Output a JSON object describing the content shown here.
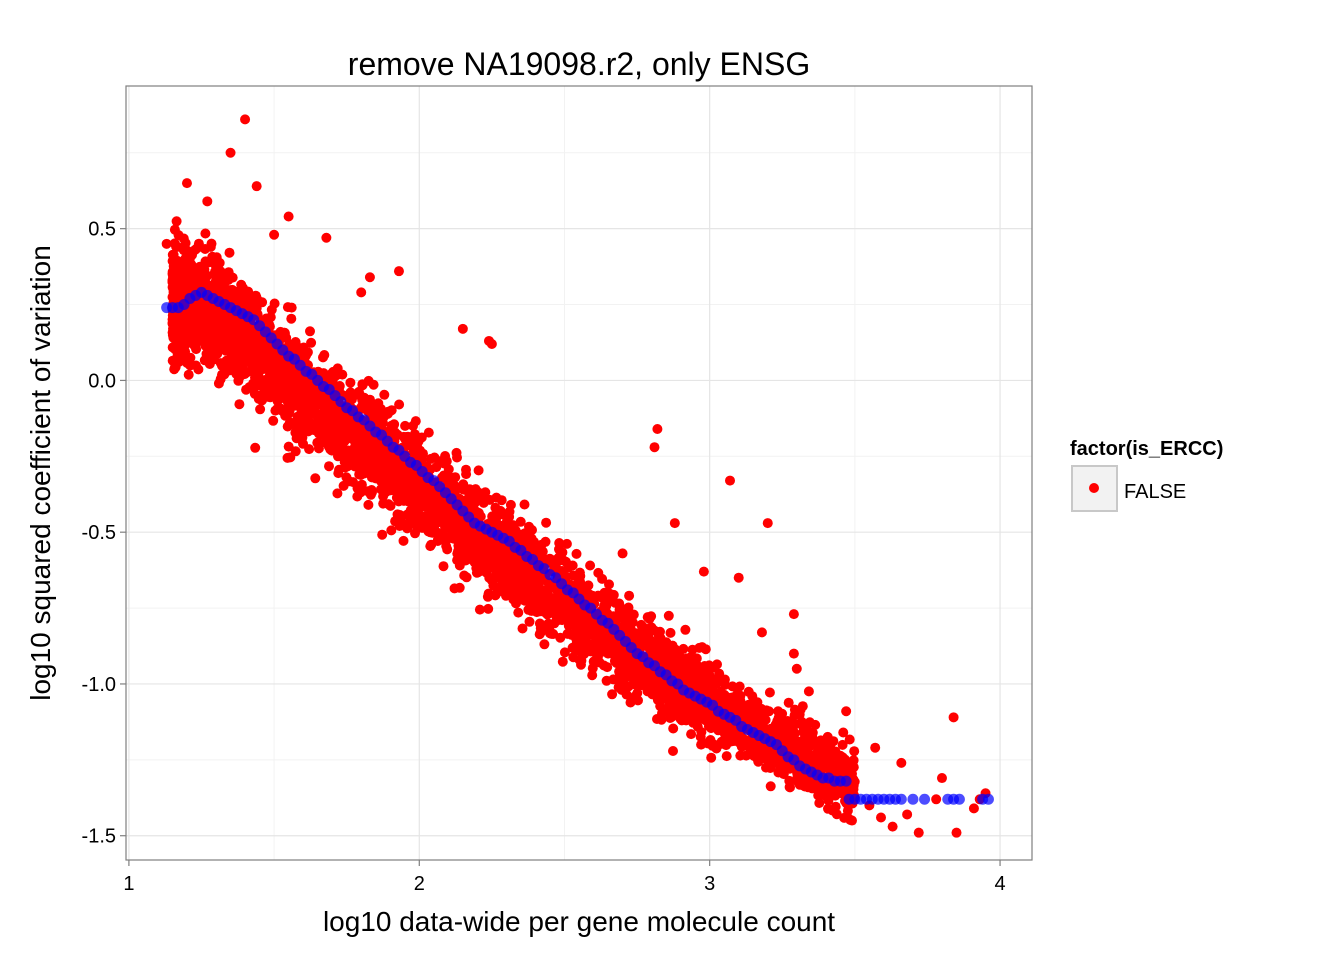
{
  "chart_data": {
    "type": "scatter",
    "title": "remove NA19098.r2, only ENSG",
    "xlabel": "log10 data-wide per gene molecule count",
    "ylabel": "log10 squared coefficient of variation",
    "xlim": [
      0.99,
      4.11
    ],
    "ylim": [
      -1.58,
      0.97
    ],
    "x_ticks": [
      {
        "value": 1,
        "label": "1"
      },
      {
        "value": 2,
        "label": "2"
      },
      {
        "value": 3,
        "label": "3"
      },
      {
        "value": 4,
        "label": "4"
      }
    ],
    "y_ticks": [
      {
        "value": 0.5,
        "label": "0.5"
      },
      {
        "value": 0.0,
        "label": "0.0"
      },
      {
        "value": -0.5,
        "label": "-0.5"
      },
      {
        "value": -1.0,
        "label": "-1.0"
      },
      {
        "value": -1.5,
        "label": "-1.5"
      }
    ],
    "grid": true,
    "legend": {
      "title": "factor(is_ERCC)",
      "position": "right",
      "entries": [
        {
          "label": "FALSE",
          "color": "#ff0000"
        }
      ]
    },
    "series": [
      {
        "name": "FALSE",
        "color": "#ff0000",
        "trend": [
          [
            1.13,
            0.24
          ],
          [
            1.2,
            0.26
          ],
          [
            1.3,
            0.22
          ],
          [
            1.4,
            0.14
          ],
          [
            1.5,
            0.06
          ],
          [
            1.6,
            -0.02
          ],
          [
            1.7,
            -0.1
          ],
          [
            1.8,
            -0.19
          ],
          [
            1.9,
            -0.27
          ],
          [
            2.0,
            -0.35
          ],
          [
            2.1,
            -0.43
          ],
          [
            2.2,
            -0.5
          ],
          [
            2.3,
            -0.58
          ],
          [
            2.4,
            -0.65
          ],
          [
            2.5,
            -0.72
          ],
          [
            2.6,
            -0.8
          ],
          [
            2.7,
            -0.87
          ],
          [
            2.8,
            -0.93
          ],
          [
            2.9,
            -1.0
          ],
          [
            3.0,
            -1.06
          ],
          [
            3.1,
            -1.12
          ],
          [
            3.2,
            -1.17
          ],
          [
            3.3,
            -1.23
          ],
          [
            3.4,
            -1.28
          ],
          [
            3.5,
            -1.32
          ],
          [
            3.6,
            -1.36
          ],
          [
            3.7,
            -1.39
          ],
          [
            3.8,
            -1.4
          ],
          [
            3.97,
            -1.4
          ]
        ],
        "outliers": [
          [
            1.13,
            0.45
          ],
          [
            1.2,
            0.65
          ],
          [
            1.35,
            0.75
          ],
          [
            1.4,
            0.86
          ],
          [
            1.44,
            0.64
          ],
          [
            1.27,
            0.59
          ],
          [
            1.5,
            0.48
          ],
          [
            1.55,
            0.54
          ],
          [
            1.68,
            0.47
          ],
          [
            1.83,
            0.34
          ],
          [
            1.93,
            0.36
          ],
          [
            1.8,
            0.29
          ],
          [
            2.15,
            0.17
          ],
          [
            2.25,
            0.12
          ],
          [
            2.24,
            0.13
          ],
          [
            2.81,
            -0.22
          ],
          [
            2.82,
            -0.16
          ],
          [
            3.07,
            -0.33
          ],
          [
            3.2,
            -0.47
          ],
          [
            2.88,
            -0.47
          ],
          [
            2.7,
            -0.57
          ],
          [
            3.1,
            -0.65
          ],
          [
            2.98,
            -0.63
          ],
          [
            3.29,
            -0.77
          ],
          [
            3.29,
            -0.9
          ],
          [
            3.3,
            -0.95
          ],
          [
            3.18,
            -0.83
          ],
          [
            3.46,
            -1.16
          ],
          [
            3.47,
            -1.09
          ],
          [
            3.57,
            -1.21
          ],
          [
            3.66,
            -1.26
          ],
          [
            3.84,
            -1.11
          ],
          [
            3.8,
            -1.31
          ],
          [
            3.95,
            -1.36
          ],
          [
            3.63,
            -1.47
          ],
          [
            3.49,
            -1.45
          ],
          [
            3.72,
            -1.49
          ],
          [
            3.85,
            -1.49
          ],
          [
            3.59,
            -1.44
          ],
          [
            3.91,
            -1.41
          ],
          [
            1.19,
            0.07
          ],
          [
            1.31,
            -0.01
          ],
          [
            1.45,
            -0.05
          ],
          [
            1.55,
            -0.11
          ],
          [
            1.72,
            -0.25
          ],
          [
            1.83,
            -0.29
          ],
          [
            1.95,
            -0.38
          ],
          [
            2.11,
            -0.49
          ],
          [
            2.25,
            -0.57
          ],
          [
            2.35,
            -0.69
          ],
          [
            2.45,
            -0.72
          ],
          [
            2.55,
            -0.82
          ],
          [
            2.65,
            -0.9
          ],
          [
            2.75,
            -0.98
          ],
          [
            2.85,
            -1.05
          ],
          [
            2.95,
            -1.1
          ],
          [
            3.05,
            -1.16
          ],
          [
            3.15,
            -1.21
          ],
          [
            3.25,
            -1.26
          ],
          [
            3.35,
            -1.31
          ],
          [
            3.42,
            -1.35
          ],
          [
            3.55,
            -1.4
          ],
          [
            3.68,
            -1.43
          ],
          [
            3.78,
            -1.38
          ],
          [
            3.93,
            -1.38
          ]
        ],
        "points_note": ""
      },
      {
        "name": "",
        "color": "#0000ff",
        "points": [
          [
            1.13,
            0.24
          ],
          [
            1.15,
            0.24
          ],
          [
            1.17,
            0.24
          ],
          [
            1.19,
            0.25
          ],
          [
            1.21,
            0.27
          ],
          [
            1.23,
            0.28
          ],
          [
            1.25,
            0.29
          ],
          [
            1.27,
            0.28
          ],
          [
            1.29,
            0.27
          ],
          [
            1.31,
            0.26
          ],
          [
            1.33,
            0.25
          ],
          [
            1.35,
            0.24
          ],
          [
            1.37,
            0.23
          ],
          [
            1.39,
            0.22
          ],
          [
            1.41,
            0.21
          ],
          [
            1.43,
            0.2
          ],
          [
            1.45,
            0.18
          ],
          [
            1.47,
            0.16
          ],
          [
            1.49,
            0.14
          ],
          [
            1.51,
            0.12
          ],
          [
            1.53,
            0.1
          ],
          [
            1.55,
            0.08
          ],
          [
            1.57,
            0.07
          ],
          [
            1.59,
            0.05
          ],
          [
            1.61,
            0.03
          ],
          [
            1.63,
            0.02
          ],
          [
            1.65,
            0.0
          ],
          [
            1.67,
            -0.02
          ],
          [
            1.69,
            -0.03
          ],
          [
            1.71,
            -0.05
          ],
          [
            1.73,
            -0.07
          ],
          [
            1.75,
            -0.09
          ],
          [
            1.77,
            -0.1
          ],
          [
            1.79,
            -0.12
          ],
          [
            1.81,
            -0.13
          ],
          [
            1.83,
            -0.15
          ],
          [
            1.85,
            -0.17
          ],
          [
            1.87,
            -0.18
          ],
          [
            1.89,
            -0.2
          ],
          [
            1.91,
            -0.22
          ],
          [
            1.93,
            -0.23
          ],
          [
            1.95,
            -0.25
          ],
          [
            1.97,
            -0.27
          ],
          [
            1.99,
            -0.28
          ],
          [
            2.01,
            -0.3
          ],
          [
            2.03,
            -0.32
          ],
          [
            2.05,
            -0.33
          ],
          [
            2.07,
            -0.35
          ],
          [
            2.09,
            -0.37
          ],
          [
            2.11,
            -0.39
          ],
          [
            2.13,
            -0.41
          ],
          [
            2.15,
            -0.43
          ],
          [
            2.17,
            -0.45
          ],
          [
            2.19,
            -0.47
          ],
          [
            2.21,
            -0.48
          ],
          [
            2.23,
            -0.49
          ],
          [
            2.25,
            -0.5
          ],
          [
            2.27,
            -0.51
          ],
          [
            2.29,
            -0.52
          ],
          [
            2.31,
            -0.53
          ],
          [
            2.33,
            -0.55
          ],
          [
            2.35,
            -0.56
          ],
          [
            2.37,
            -0.58
          ],
          [
            2.39,
            -0.59
          ],
          [
            2.41,
            -0.61
          ],
          [
            2.43,
            -0.62
          ],
          [
            2.45,
            -0.64
          ],
          [
            2.47,
            -0.65
          ],
          [
            2.49,
            -0.67
          ],
          [
            2.51,
            -0.69
          ],
          [
            2.53,
            -0.7
          ],
          [
            2.55,
            -0.72
          ],
          [
            2.57,
            -0.74
          ],
          [
            2.59,
            -0.75
          ],
          [
            2.61,
            -0.77
          ],
          [
            2.63,
            -0.79
          ],
          [
            2.65,
            -0.8
          ],
          [
            2.67,
            -0.82
          ],
          [
            2.69,
            -0.84
          ],
          [
            2.71,
            -0.86
          ],
          [
            2.73,
            -0.88
          ],
          [
            2.75,
            -0.9
          ],
          [
            2.77,
            -0.91
          ],
          [
            2.79,
            -0.93
          ],
          [
            2.81,
            -0.94
          ],
          [
            2.83,
            -0.96
          ],
          [
            2.85,
            -0.97
          ],
          [
            2.87,
            -0.99
          ],
          [
            2.89,
            -1.0
          ],
          [
            2.91,
            -1.02
          ],
          [
            2.93,
            -1.03
          ],
          [
            2.95,
            -1.04
          ],
          [
            2.97,
            -1.05
          ],
          [
            2.99,
            -1.06
          ],
          [
            3.01,
            -1.07
          ],
          [
            3.03,
            -1.09
          ],
          [
            3.05,
            -1.1
          ],
          [
            3.07,
            -1.11
          ],
          [
            3.09,
            -1.12
          ],
          [
            3.11,
            -1.14
          ],
          [
            3.13,
            -1.15
          ],
          [
            3.15,
            -1.16
          ],
          [
            3.17,
            -1.17
          ],
          [
            3.19,
            -1.18
          ],
          [
            3.21,
            -1.19
          ],
          [
            3.23,
            -1.2
          ],
          [
            3.25,
            -1.22
          ],
          [
            3.27,
            -1.24
          ],
          [
            3.29,
            -1.25
          ],
          [
            3.31,
            -1.27
          ],
          [
            3.33,
            -1.28
          ],
          [
            3.35,
            -1.29
          ],
          [
            3.37,
            -1.3
          ],
          [
            3.39,
            -1.31
          ],
          [
            3.41,
            -1.31
          ],
          [
            3.43,
            -1.32
          ],
          [
            3.45,
            -1.32
          ],
          [
            3.47,
            -1.32
          ],
          [
            3.48,
            -1.38
          ],
          [
            3.5,
            -1.38
          ],
          [
            3.52,
            -1.38
          ],
          [
            3.54,
            -1.38
          ],
          [
            3.56,
            -1.38
          ],
          [
            3.58,
            -1.38
          ],
          [
            3.6,
            -1.38
          ],
          [
            3.62,
            -1.38
          ],
          [
            3.64,
            -1.38
          ],
          [
            3.66,
            -1.38
          ],
          [
            3.7,
            -1.38
          ],
          [
            3.74,
            -1.38
          ],
          [
            3.82,
            -1.38
          ],
          [
            3.84,
            -1.38
          ],
          [
            3.86,
            -1.38
          ],
          [
            3.94,
            -1.38
          ],
          [
            3.96,
            -1.38
          ]
        ]
      }
    ]
  }
}
